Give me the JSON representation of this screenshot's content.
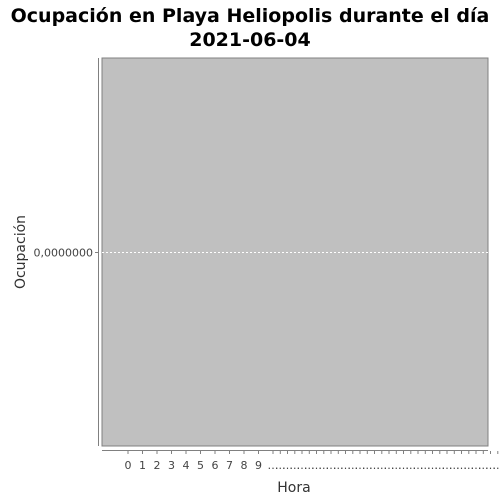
{
  "chart_data": {
    "type": "line",
    "title": "Ocupación en Playa Heliopolis durante el día",
    "subtitle": "2021-06-04",
    "xlabel": "Hora",
    "ylabel": "Ocupación",
    "y_tick_labels": [
      "0,0000000"
    ],
    "y_ticks": [
      0
    ],
    "x_tick_labels": [
      "0",
      "1",
      "2",
      "3",
      "4",
      "5",
      "6",
      "7",
      "8",
      "9",
      "…",
      "…",
      "…",
      "…",
      "…",
      "…",
      "…",
      "…",
      "…",
      "…",
      "…",
      "…",
      "…",
      "…",
      "…",
      "…",
      "…",
      "…",
      "…",
      "…",
      "…",
      "…",
      "…",
      "…",
      "…",
      "…",
      "…",
      "…",
      "…",
      "…",
      "…",
      "…",
      "…",
      "…",
      "…",
      "…",
      "…"
    ],
    "series": [],
    "grid": true,
    "plot_background": "#c0c0c0"
  }
}
